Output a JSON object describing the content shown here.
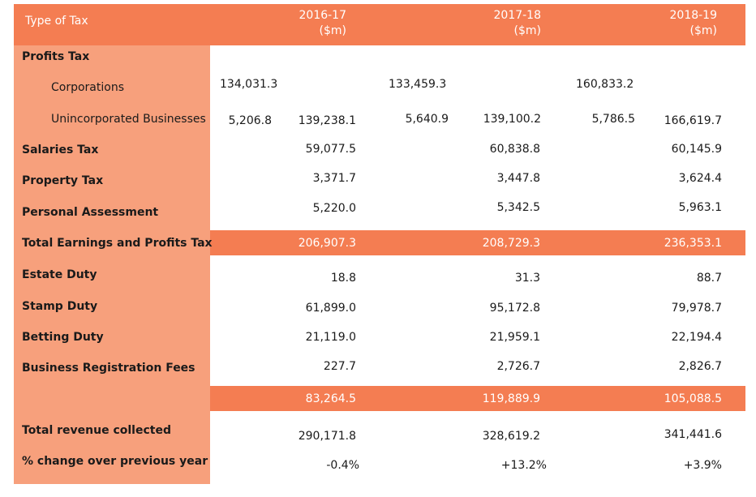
{
  "header": {
    "type_label": "Type of Tax",
    "years": [
      {
        "year": "2016-17",
        "unit": "($m)"
      },
      {
        "year": "2017-18",
        "unit": "($m)"
      },
      {
        "year": "2018-19",
        "unit": "($m)"
      }
    ]
  },
  "profits_tax": {
    "label": "Profits Tax",
    "corporations": {
      "label": "Corporations",
      "values": [
        "134,031.3",
        "133,459.3",
        "160,833.2"
      ]
    },
    "unincorporated": {
      "label": "Unincorporated Businesses",
      "values": [
        "5,206.8",
        "5,640.9",
        "5,786.5"
      ]
    },
    "totals": [
      "139,238.1",
      "139,100.2",
      "166,619.7"
    ]
  },
  "salaries_tax": {
    "label": "Salaries Tax",
    "values": [
      "59,077.5",
      "60,838.8",
      "60,145.9"
    ]
  },
  "property_tax": {
    "label": "Property Tax",
    "values": [
      "3,371.7",
      "3,447.8",
      "3,624.4"
    ]
  },
  "personal_assessment": {
    "label": "Personal Assessment",
    "values": [
      "5,220.0",
      "5,342.5",
      "5,963.1"
    ]
  },
  "total_earnings": {
    "label": "Total Earnings and Profits Tax",
    "values": [
      "206,907.3",
      "208,729.3",
      "236,353.1"
    ]
  },
  "estate_duty": {
    "label": "Estate Duty",
    "values": [
      "18.8",
      "31.3",
      "88.7"
    ]
  },
  "stamp_duty": {
    "label": "Stamp Duty",
    "values": [
      "61,899.0",
      "95,172.8",
      "79,978.7"
    ]
  },
  "betting_duty": {
    "label": "Betting Duty",
    "values": [
      "21,119.0",
      "21,959.1",
      "22,194.4"
    ]
  },
  "business_reg": {
    "label": "Business Registration Fees",
    "values": [
      "227.7",
      "2,726.7",
      "2,826.7"
    ]
  },
  "subtotal": {
    "values": [
      "83,264.5",
      "119,889.9",
      "105,088.5"
    ]
  },
  "total_revenue": {
    "label": "Total revenue collected",
    "values": [
      "290,171.8",
      "328,619.2",
      "341,441.6"
    ]
  },
  "pct_change": {
    "label": "% change over previous year",
    "values": [
      "-0.4%",
      "+13.2%",
      "+3.9%"
    ]
  },
  "colors": {
    "header": "#f47d52",
    "label_column": "#f7a07c",
    "body": "#ffffff"
  }
}
